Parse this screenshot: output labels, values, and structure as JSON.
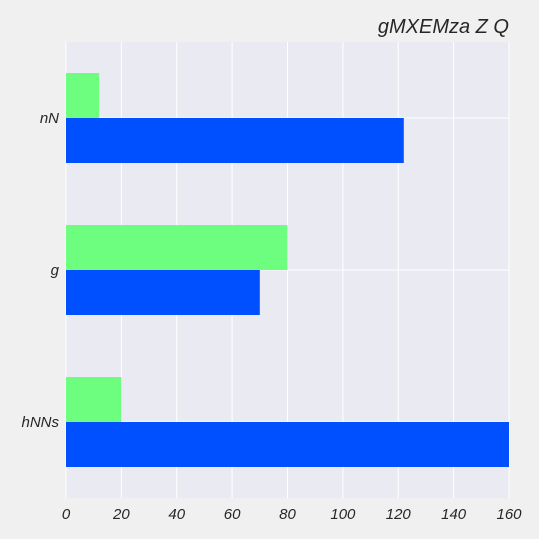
{
  "chart_data": {
    "type": "bar",
    "orientation": "horizontal",
    "title": "gMXEMza Z Q",
    "xlabel": "",
    "ylabel": "",
    "categories": [
      "nN",
      "g",
      "hNNs"
    ],
    "series": [
      {
        "name": "series-green",
        "color": "#6dfe80",
        "values": [
          12,
          80,
          20
        ]
      },
      {
        "name": "series-blue",
        "color": "#0050ff",
        "values": [
          122,
          70,
          160
        ]
      }
    ],
    "xlim": [
      0,
      160
    ],
    "xticks": [
      0,
      20,
      40,
      60,
      80,
      100,
      120,
      140,
      160
    ],
    "grid": true,
    "colors": {
      "plot_background": "#eaeaf2",
      "page_background": "#f0f0f0",
      "grid": "#ffffff"
    }
  }
}
